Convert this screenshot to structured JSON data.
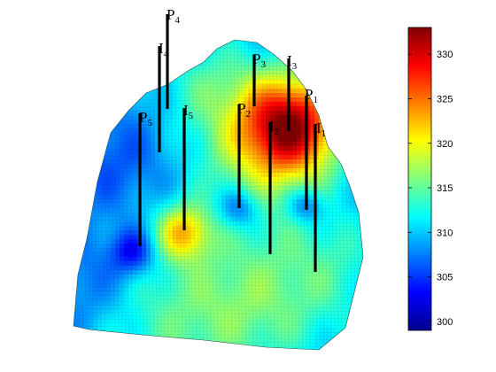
{
  "chart_data": {
    "type": "surface",
    "title": "",
    "colormap": "jet",
    "colorbar": {
      "min": 299,
      "max": 333,
      "ticks": [
        300,
        305,
        310,
        315,
        320,
        325,
        330
      ]
    },
    "wells": [
      {
        "name": "P",
        "index": "1",
        "type": "producer"
      },
      {
        "name": "P",
        "index": "2",
        "type": "producer"
      },
      {
        "name": "P",
        "index": "3",
        "type": "producer"
      },
      {
        "name": "P",
        "index": "4",
        "type": "producer"
      },
      {
        "name": "P",
        "index": "5",
        "type": "producer"
      },
      {
        "name": "I",
        "index": "1",
        "type": "injector"
      },
      {
        "name": "I",
        "index": "2",
        "type": "injector"
      },
      {
        "name": "I",
        "index": "3",
        "type": "injector"
      },
      {
        "name": "I",
        "index": "4",
        "type": "injector"
      },
      {
        "name": "I",
        "index": "5",
        "type": "injector"
      }
    ]
  }
}
